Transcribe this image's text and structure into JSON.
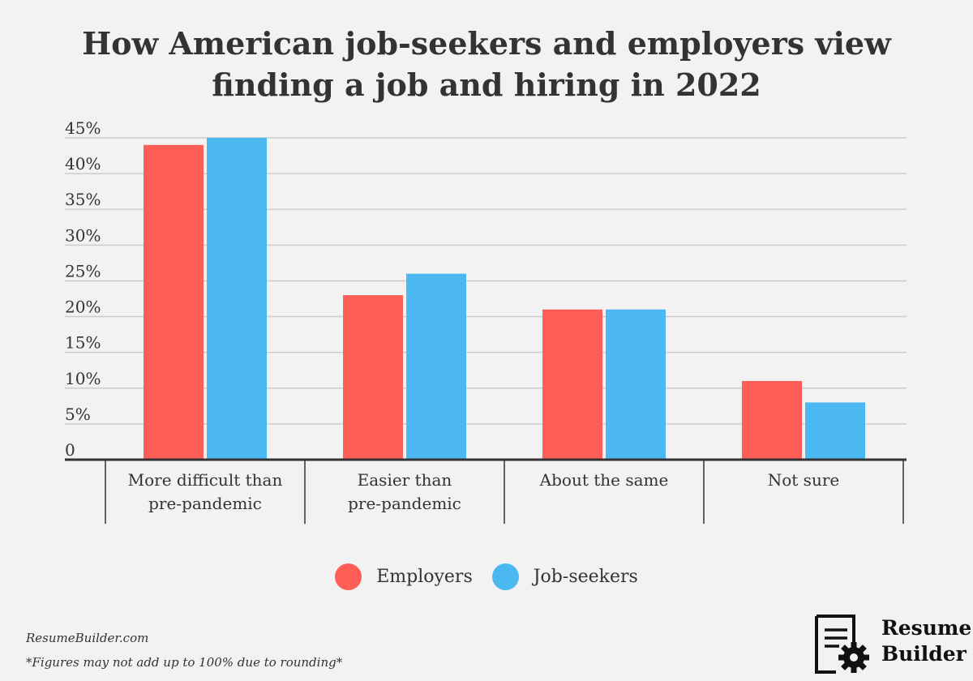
{
  "title": {
    "line1": "How American job-seekers and employers view",
    "line2": "finding a job and hiring in 2022"
  },
  "chart_data": {
    "type": "bar",
    "categories": [
      [
        "More difficult than",
        "pre-pandemic"
      ],
      [
        "Easier than",
        "pre-pandemic"
      ],
      [
        "About the same"
      ],
      [
        "Not sure"
      ]
    ],
    "series": [
      {
        "name": "Employers",
        "color": "#ff5e57",
        "values": [
          44,
          23,
          21,
          11
        ]
      },
      {
        "name": "Job-seekers",
        "color": "#4bb8f2",
        "values": [
          45,
          26,
          21,
          8
        ]
      }
    ],
    "y_ticks": [
      "0",
      "5%",
      "10%",
      "15%",
      "20%",
      "25%",
      "30%",
      "35%",
      "40%",
      "45%"
    ],
    "ylim": [
      0,
      45
    ],
    "grid": true,
    "legend_position": "bottom"
  },
  "legend": {
    "items": [
      {
        "label": "Employers",
        "color": "#ff5e57"
      },
      {
        "label": "Job-seekers",
        "color": "#4bb8f2"
      }
    ]
  },
  "source": "ResumeBuilder.com",
  "footnote": "*Figures may not add up to 100% due to rounding*",
  "logo": {
    "line1": "Resume",
    "line2": "Builder",
    "icon": "document-gear-icon"
  }
}
